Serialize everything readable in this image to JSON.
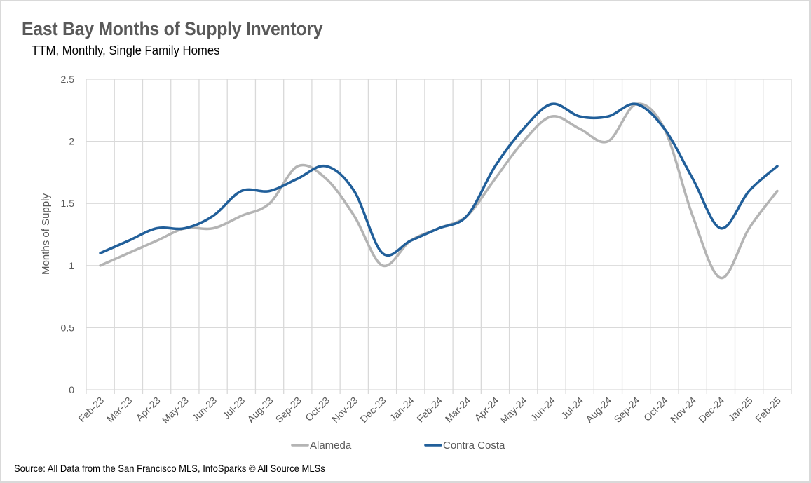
{
  "chart_data": {
    "type": "line",
    "title": "East Bay Months of Supply Inventory",
    "subtitle": "TTM, Monthly, Single Family Homes",
    "xlabel": "",
    "ylabel": "Months of Supply",
    "ylim": [
      0,
      2.5
    ],
    "yticks": [
      0,
      0.5,
      1,
      1.5,
      2,
      2.5
    ],
    "ytick_labels": [
      "0",
      "0.5",
      "1",
      "1.5",
      "2",
      "2.5"
    ],
    "grid": true,
    "smooth": true,
    "legend_position": "bottom",
    "categories": [
      "Feb-23",
      "Mar-23",
      "Apr-23",
      "May-23",
      "Jun-23",
      "Jul-23",
      "Aug-23",
      "Sep-23",
      "Oct-23",
      "Nov-23",
      "Dec-23",
      "Jan-24",
      "Feb-24",
      "Mar-24",
      "Apr-24",
      "May-24",
      "Jun-24",
      "Jul-24",
      "Aug-24",
      "Sep-24",
      "Oct-24",
      "Nov-24",
      "Dec-24",
      "Jan-25",
      "Feb-25"
    ],
    "series": [
      {
        "name": "Alameda",
        "color": "#b4b4b4",
        "values": [
          1.0,
          1.1,
          1.2,
          1.3,
          1.3,
          1.4,
          1.5,
          1.8,
          1.7,
          1.4,
          1.0,
          1.2,
          1.3,
          1.4,
          1.7,
          2.0,
          2.2,
          2.1,
          2.0,
          2.3,
          2.1,
          1.4,
          0.9,
          1.3,
          1.6
        ]
      },
      {
        "name": "Contra Costa",
        "color": "#215f9a",
        "values": [
          1.1,
          1.2,
          1.3,
          1.3,
          1.4,
          1.6,
          1.6,
          1.7,
          1.8,
          1.6,
          1.1,
          1.2,
          1.3,
          1.4,
          1.8,
          2.1,
          2.3,
          2.2,
          2.2,
          2.3,
          2.1,
          1.7,
          1.3,
          1.6,
          1.8
        ]
      }
    ],
    "gridline_color": "#d9d9d9",
    "source": "Source: All Data from the San Francisco MLS, InfoSparks © All Source MLSs"
  }
}
